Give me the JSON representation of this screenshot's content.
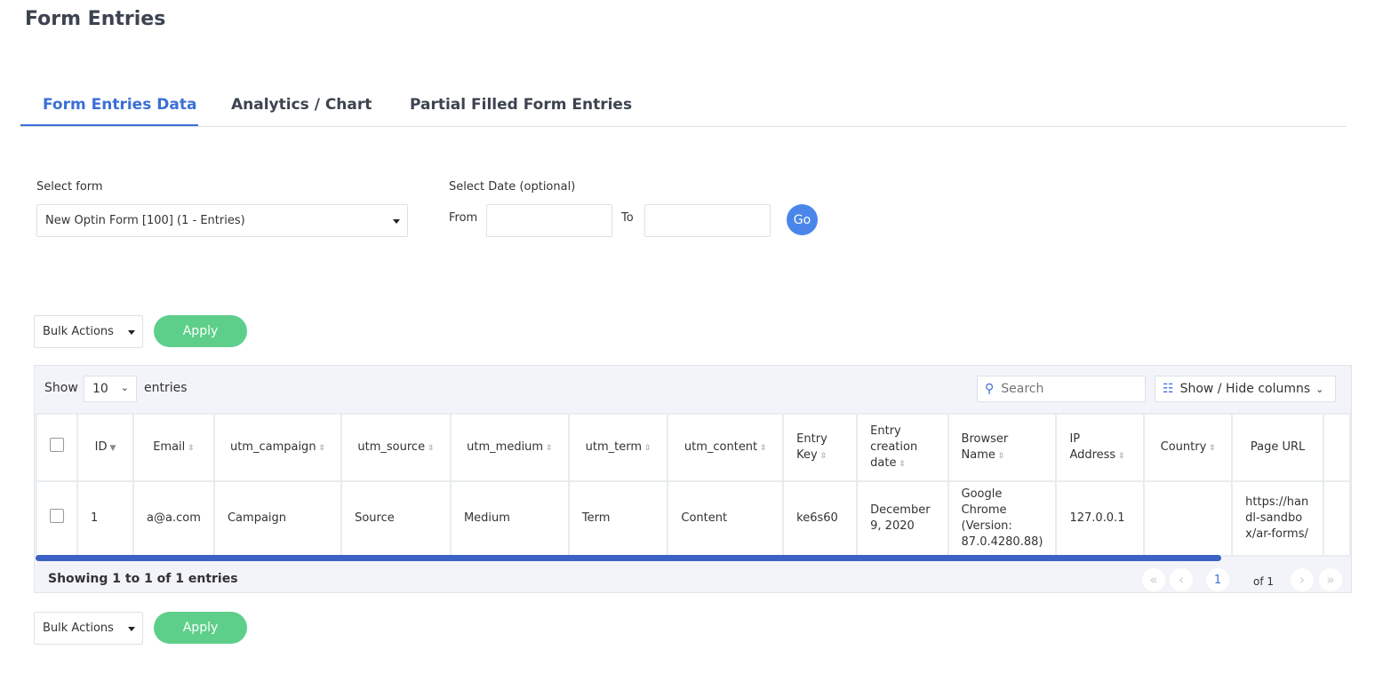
{
  "page_title": "Form Entries",
  "tabs": [
    {
      "label": "Form Entries Data"
    },
    {
      "label": "Analytics / Chart"
    },
    {
      "label": "Partial Filled Form Entries"
    }
  ],
  "filters": {
    "select_form_label": "Select form",
    "select_form_value": "New Optin Form [100] (1 - Entries)",
    "date_label": "Select Date (optional)",
    "from_label": "From",
    "to_label": "To",
    "from_value": "",
    "to_value": "",
    "go_label": "Go"
  },
  "bulk": {
    "label": "Bulk Actions",
    "apply": "Apply"
  },
  "table": {
    "show_label": "Show",
    "page_size": "10",
    "entries_label": "entries",
    "search_placeholder": "Search",
    "columns_button": "Show / Hide columns",
    "headers": [
      "ID",
      "Email",
      "utm_campaign",
      "utm_source",
      "utm_medium",
      "utm_term",
      "utm_content",
      "Entry Key",
      "Entry creation date",
      "Browser Name",
      "IP Address",
      "Country",
      "Page URL"
    ],
    "rows": [
      [
        "1",
        "a@a.com",
        "Campaign",
        "Source",
        "Medium",
        "Term",
        "Content",
        "ke6s60",
        "December 9, 2020",
        "Google Chrome (Version: 87.0.4280.88)",
        "127.0.0.1",
        "",
        "https://handl-sandbox/ar-forms/"
      ]
    ],
    "summary": "Showing 1 to 1 of 1 entries",
    "current_page": "1",
    "of_pages": "of 1"
  },
  "colors": {
    "accent": "#3b6fd6",
    "apply": "#5dcf8a",
    "go": "#4a86ea"
  }
}
